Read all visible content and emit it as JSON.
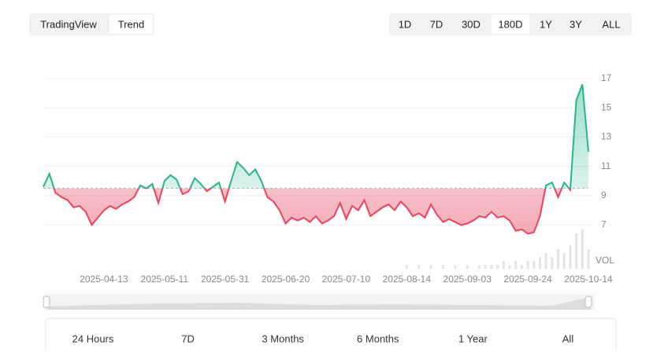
{
  "tabs": {
    "items": [
      "TradingView",
      "Trend"
    ],
    "selected": 1
  },
  "ranges": {
    "items": [
      "1D",
      "7D",
      "30D",
      "180D",
      "1Y",
      "3Y",
      "ALL"
    ],
    "selected": 3
  },
  "chart_data": {
    "type": "baseline-area",
    "categories": [
      null,
      null,
      null,
      null,
      null,
      null,
      null,
      null,
      null,
      null,
      "2025-04-13",
      null,
      null,
      null,
      null,
      null,
      null,
      null,
      null,
      null,
      "2025-05-11",
      null,
      null,
      null,
      null,
      null,
      null,
      null,
      null,
      null,
      "2025-05-31",
      null,
      null,
      null,
      null,
      null,
      null,
      null,
      null,
      null,
      "2025-06-20",
      null,
      null,
      null,
      null,
      null,
      null,
      null,
      null,
      null,
      "2025-07-10",
      null,
      null,
      null,
      null,
      null,
      null,
      null,
      null,
      null,
      "2025-08-14",
      null,
      null,
      null,
      null,
      null,
      null,
      null,
      null,
      null,
      "2025-09-03",
      null,
      null,
      null,
      null,
      null,
      null,
      null,
      null,
      null,
      "2025-09-24",
      null,
      null,
      null,
      null,
      null,
      null,
      null,
      null,
      null,
      "2025-10-14"
    ],
    "values": [
      9.6,
      10.5,
      9.2,
      8.9,
      8.7,
      8.2,
      8.3,
      7.9,
      7.0,
      7.5,
      8.0,
      8.3,
      8.1,
      8.4,
      8.6,
      8.9,
      9.7,
      9.5,
      9.8,
      8.5,
      10.0,
      10.4,
      10.1,
      9.1,
      9.3,
      10.2,
      9.8,
      9.3,
      9.6,
      9.9,
      8.6,
      10.0,
      11.3,
      10.9,
      10.4,
      10.8,
      10.0,
      8.9,
      8.6,
      8.0,
      7.1,
      7.5,
      7.3,
      7.5,
      7.2,
      7.6,
      7.1,
      7.3,
      7.6,
      8.5,
      7.4,
      8.3,
      8.0,
      8.7,
      7.6,
      7.9,
      8.2,
      8.4,
      8.0,
      8.6,
      8.2,
      7.6,
      7.8,
      7.5,
      8.4,
      7.7,
      7.2,
      7.4,
      7.2,
      7.0,
      7.1,
      7.3,
      7.6,
      7.5,
      7.9,
      7.5,
      7.6,
      7.3,
      6.6,
      6.7,
      6.4,
      6.5,
      7.6,
      9.7,
      9.9,
      8.9,
      9.9,
      9.4,
      15.5,
      16.6,
      12.0
    ],
    "baseline": 9.5,
    "volume": [
      0,
      0,
      0,
      0,
      0,
      0,
      0,
      0,
      0,
      0,
      0,
      0,
      0,
      0,
      0,
      0,
      0,
      0,
      0,
      0,
      0,
      0,
      0,
      0,
      0,
      0,
      0,
      0,
      0,
      0,
      0,
      0,
      0,
      0,
      0,
      0,
      0,
      0,
      0,
      0,
      0,
      0,
      0,
      0,
      0,
      0,
      0,
      0,
      0,
      0,
      0,
      0,
      0,
      0,
      0,
      0,
      0,
      0,
      0,
      0,
      1,
      0,
      1,
      0,
      1,
      0,
      1,
      0,
      1,
      0,
      1,
      0,
      1,
      1,
      1,
      1,
      2,
      1,
      2,
      1,
      2,
      2,
      3,
      4,
      3,
      5,
      4,
      6,
      9,
      10,
      5
    ],
    "volume_label": "VOL",
    "up_color": "#26b58e",
    "down_color": "#e8445f",
    "ylim": [
      4,
      18.5
    ],
    "yticks": [
      7,
      9,
      11,
      13,
      15,
      17
    ],
    "grid": true
  },
  "periods": [
    "24 Hours",
    "7D",
    "3 Months",
    "6 Months",
    "1 Year",
    "All"
  ]
}
